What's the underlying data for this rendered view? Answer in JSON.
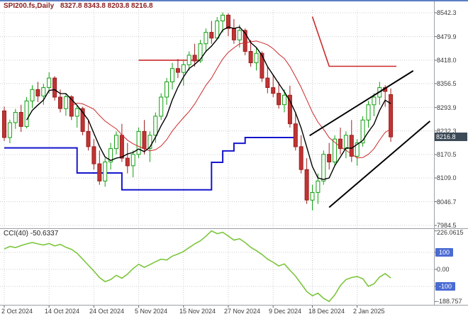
{
  "title": {
    "symbol_period": "SPI200.fs,Daily",
    "ohlc": "8327.8 8343.8 8203.8 8216.8"
  },
  "colors": {
    "grid": "#cccccc",
    "bull_stroke": "#11a011",
    "bull_fill": "#ffffff",
    "bear_stroke": "#9c1f1f",
    "bear_fill": "#c03434",
    "ma_fast": "#000000",
    "ma_slow": "#cc2929",
    "blue_line": "#1515cd",
    "red_level": "#cc2929",
    "trendline": "#000000",
    "cci_line": "#7cc63c",
    "badge_price_bg": "#3d4a57",
    "badge_level_bg": "#4a6bd3",
    "tick": "#666666"
  },
  "price_axis": {
    "labels": [
      {
        "text": "8542.3",
        "value": 8542.3
      },
      {
        "text": "8479.9",
        "value": 8479.9
      },
      {
        "text": "8418.0",
        "value": 8418.0
      },
      {
        "text": "8356.5",
        "value": 8356.5
      },
      {
        "text": "8293.9",
        "value": 8293.9
      },
      {
        "text": "8232.3",
        "value": 8232.3
      },
      {
        "text": "8170.5",
        "value": 8170.5
      },
      {
        "text": "8109.0",
        "value": 8109.0
      },
      {
        "text": "8046.7",
        "value": 8046.7
      },
      {
        "text": "7984.5",
        "value": 7984.5
      }
    ],
    "current_badge": {
      "text": "8216.8",
      "value": 8216.8
    }
  },
  "time_axis": {
    "labels": [
      {
        "text": "2 Oct 2024",
        "i": 0
      },
      {
        "text": "14 Oct 2024",
        "i": 8
      },
      {
        "text": "24 Oct 2024",
        "i": 16
      },
      {
        "text": "5 Nov 2024",
        "i": 24
      },
      {
        "text": "15 Nov 2024",
        "i": 32
      },
      {
        "text": "27 Nov 2024",
        "i": 40
      },
      {
        "text": "9 Dec 2024",
        "i": 48
      },
      {
        "text": "18 Dec 2024",
        "i": 55
      },
      {
        "text": "2 Jan 2025",
        "i": 63
      }
    ]
  },
  "indicator": {
    "label": "CCI(40) -50.6337",
    "axis": [
      {
        "text": "226.0615",
        "value": 226.0615,
        "badge": false
      },
      {
        "text": "100",
        "value": 100,
        "badge": true
      },
      {
        "text": "0.00",
        "value": 0,
        "badge": false
      },
      {
        "text": "-100",
        "value": -100,
        "badge": true
      },
      {
        "text": "-188.757",
        "value": -188.757,
        "badge": false
      }
    ]
  },
  "chart_data": {
    "type": "candlestick",
    "title": "SPI200.fs Daily",
    "ylim": [
      7984.5,
      8542.3
    ],
    "last_ohlc": {
      "open": 8327.8,
      "high": 8343.8,
      "low": 8203.8,
      "close": 8216.8
    },
    "candles": [
      [
        8285,
        8296,
        8206,
        8215
      ],
      [
        8215,
        8262,
        8200,
        8254
      ],
      [
        8254,
        8290,
        8238,
        8281
      ],
      [
        8281,
        8301,
        8230,
        8244
      ],
      [
        8244,
        8321,
        8239,
        8311
      ],
      [
        8311,
        8352,
        8292,
        8341
      ],
      [
        8341,
        8361,
        8308,
        8324
      ],
      [
        8324,
        8356,
        8301,
        8346
      ],
      [
        8346,
        8386,
        8331,
        8371
      ],
      [
        8371,
        8376,
        8312,
        8321
      ],
      [
        8321,
        8341,
        8281,
        8291
      ],
      [
        8291,
        8331,
        8272,
        8322
      ],
      [
        8322,
        8326,
        8261,
        8271
      ],
      [
        8271,
        8301,
        8241,
        8291
      ],
      [
        8291,
        8296,
        8221,
        8231
      ],
      [
        8231,
        8261,
        8181,
        8191
      ],
      [
        8191,
        8211,
        8131,
        8146
      ],
      [
        8146,
        8181,
        8091,
        8101
      ],
      [
        8101,
        8161,
        8086,
        8151
      ],
      [
        8151,
        8201,
        8131,
        8186
      ],
      [
        8186,
        8231,
        8171,
        8221
      ],
      [
        8221,
        8251,
        8151,
        8161
      ],
      [
        8161,
        8201,
        8121,
        8141
      ],
      [
        8141,
        8181,
        8111,
        8171
      ],
      [
        8171,
        8241,
        8161,
        8231
      ],
      [
        8231,
        8261,
        8171,
        8186
      ],
      [
        8186,
        8231,
        8151,
        8221
      ],
      [
        8221,
        8281,
        8201,
        8271
      ],
      [
        8271,
        8331,
        8261,
        8321
      ],
      [
        8321,
        8371,
        8301,
        8361
      ],
      [
        8361,
        8411,
        8341,
        8396
      ],
      [
        8396,
        8421,
        8371,
        8386
      ],
      [
        8386,
        8416,
        8351,
        8406
      ],
      [
        8406,
        8441,
        8391,
        8431
      ],
      [
        8431,
        8461,
        8401,
        8416
      ],
      [
        8416,
        8471,
        8411,
        8461
      ],
      [
        8461,
        8501,
        8441,
        8491
      ],
      [
        8491,
        8521,
        8461,
        8476
      ],
      [
        8476,
        8531,
        8471,
        8521
      ],
      [
        8521,
        8543,
        8491,
        8536
      ],
      [
        8536,
        8541,
        8481,
        8501
      ],
      [
        8501,
        8526,
        8461,
        8471
      ],
      [
        8471,
        8511,
        8451,
        8496
      ],
      [
        8496,
        8501,
        8431,
        8441
      ],
      [
        8441,
        8471,
        8401,
        8411
      ],
      [
        8411,
        8451,
        8391,
        8436
      ],
      [
        8436,
        8441,
        8361,
        8371
      ],
      [
        8371,
        8401,
        8331,
        8346
      ],
      [
        8346,
        8381,
        8321,
        8331
      ],
      [
        8331,
        8361,
        8291,
        8301
      ],
      [
        8301,
        8341,
        8281,
        8326
      ],
      [
        8326,
        8351,
        8241,
        8251
      ],
      [
        8251,
        8281,
        8181,
        8191
      ],
      [
        8191,
        8221,
        8121,
        8131
      ],
      [
        8131,
        8161,
        8041,
        8051
      ],
      [
        8051,
        8091,
        8024,
        8071
      ],
      [
        8071,
        8121,
        8041,
        8101
      ],
      [
        8101,
        8181,
        8091,
        8171
      ],
      [
        8171,
        8201,
        8131,
        8151
      ],
      [
        8151,
        8221,
        8141,
        8211
      ],
      [
        8211,
        8241,
        8171,
        8186
      ],
      [
        8186,
        8231,
        8161,
        8221
      ],
      [
        8221,
        8261,
        8151,
        8166
      ],
      [
        8166,
        8211,
        8141,
        8201
      ],
      [
        8201,
        8271,
        8191,
        8261
      ],
      [
        8261,
        8311,
        8241,
        8301
      ],
      [
        8301,
        8331,
        8271,
        8321
      ],
      [
        8321,
        8361,
        8301,
        8346
      ],
      [
        8346,
        8352,
        8296,
        8336
      ],
      [
        8327.8,
        8343.8,
        8203.8,
        8216.8
      ]
    ],
    "overlays": {
      "ma_fast_period": 5,
      "ma_slow_period": 13,
      "blue_step_line": [
        [
          0,
          8188
        ],
        [
          13,
          8188
        ],
        [
          13,
          8122
        ],
        [
          21,
          8122
        ],
        [
          21,
          8078
        ],
        [
          37,
          8078
        ],
        [
          37,
          8150
        ],
        [
          39,
          8150
        ],
        [
          39,
          8180
        ],
        [
          41,
          8180
        ],
        [
          41,
          8200
        ],
        [
          43,
          8200
        ],
        [
          43,
          8215
        ],
        [
          52,
          8215
        ]
      ],
      "red_level_lines": [
        [
          [
            24,
            8418
          ],
          [
            35,
            8418
          ]
        ],
        [
          [
            55,
            8532
          ],
          [
            58,
            8402
          ],
          [
            70,
            8402
          ]
        ]
      ],
      "black_trendlines": [
        [
          54.5,
          8220,
          73,
          8390
        ],
        [
          58,
          8032,
          76,
          8258
        ]
      ]
    },
    "cci": {
      "period": 40,
      "current": -50.6337,
      "max": 226.0615,
      "min": -188.757,
      "levels": [
        100,
        0,
        -100
      ],
      "values": [
        120,
        135,
        128,
        140,
        150,
        158,
        150,
        143,
        152,
        138,
        147,
        130,
        118,
        95,
        60,
        25,
        -10,
        -48,
        -72,
        -60,
        -35,
        -52,
        -28,
        5,
        30,
        12,
        28,
        45,
        60,
        55,
        78,
        90,
        105,
        128,
        150,
        168,
        195,
        226.0615,
        210,
        218,
        196,
        172,
        180,
        158,
        130,
        110,
        88,
        60,
        42,
        20,
        32,
        -5,
        -40,
        -85,
        -130,
        -155,
        -140,
        -170,
        -188.757,
        -150,
        -95,
        -60,
        -48,
        -42,
        -55,
        -100,
        -85,
        -45,
        -25,
        -50.6337
      ]
    }
  }
}
